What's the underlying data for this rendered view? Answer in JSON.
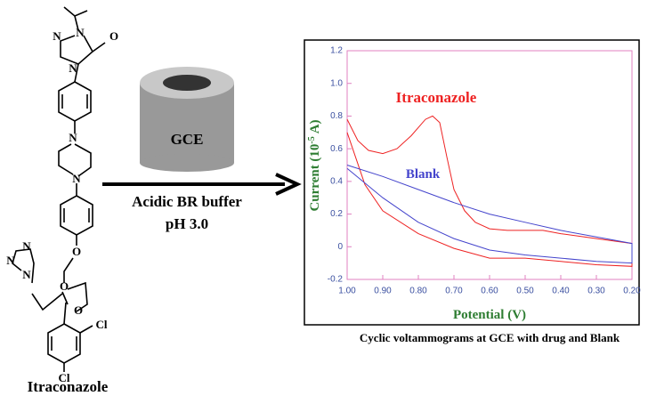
{
  "structure_labels": [
    "N",
    "N",
    "N",
    "O",
    "N",
    "N",
    "O",
    "N",
    "N",
    "N",
    "O",
    "O",
    "Cl",
    "Cl"
  ],
  "molecule_name": "Itraconazole",
  "electrode_label": "GCE",
  "arrow_labels": [
    "Acidic BR buffer",
    "pH 3.0"
  ],
  "caption": "Cyclic voltammograms at GCE with drug and Blank",
  "chart_data": {
    "type": "line",
    "xlabel": "Potential (V)",
    "ylabel": {
      "main": "Current (10",
      "sup": "-5",
      "end": " A)"
    },
    "xlim": [
      1.0,
      0.2
    ],
    "xticks": [
      {
        "value": 1.0,
        "label": "1.00"
      },
      {
        "value": 0.9,
        "label": "0.90"
      },
      {
        "value": 0.8,
        "label": "0.80"
      },
      {
        "value": 0.7,
        "label": "0.70"
      },
      {
        "value": 0.6,
        "label": "0.60"
      },
      {
        "value": 0.5,
        "label": "0.50"
      },
      {
        "value": 0.4,
        "label": "0.40"
      },
      {
        "value": 0.3,
        "label": "0.30"
      },
      {
        "value": 0.2,
        "label": "0.20"
      }
    ],
    "ylim": [
      -0.2,
      1.2
    ],
    "yticks": [
      -0.2,
      0,
      0.2,
      0.4,
      0.6,
      0.8,
      {
        "value": 1.0,
        "label": "1.0"
      },
      1.2
    ],
    "series": [
      {
        "name": "Itraconazole",
        "color": "#ee2222",
        "x": [
          1.0,
          0.97,
          0.94,
          0.9,
          0.86,
          0.82,
          0.78,
          0.76,
          0.74,
          0.72,
          0.7,
          0.67,
          0.64,
          0.6,
          0.55,
          0.5,
          0.45,
          0.4,
          0.3,
          0.2,
          0.2,
          0.3,
          0.4,
          0.5,
          0.6,
          0.7,
          0.8,
          0.9,
          0.95,
          1.0
        ],
        "values": [
          0.78,
          0.65,
          0.59,
          0.57,
          0.6,
          0.68,
          0.78,
          0.8,
          0.76,
          0.55,
          0.35,
          0.22,
          0.15,
          0.11,
          0.1,
          0.1,
          0.1,
          0.08,
          0.05,
          0.02,
          -0.12,
          -0.11,
          -0.09,
          -0.07,
          -0.07,
          -0.01,
          0.08,
          0.22,
          0.38,
          0.7
        ]
      },
      {
        "name": "Blank",
        "color": "#4444cc",
        "x": [
          1.0,
          0.9,
          0.8,
          0.7,
          0.6,
          0.5,
          0.4,
          0.3,
          0.2,
          0.2,
          0.3,
          0.4,
          0.5,
          0.6,
          0.7,
          0.8,
          0.9,
          1.0
        ],
        "values": [
          0.5,
          0.43,
          0.35,
          0.27,
          0.2,
          0.15,
          0.1,
          0.06,
          0.02,
          -0.1,
          -0.09,
          -0.07,
          -0.05,
          -0.02,
          0.05,
          0.15,
          0.3,
          0.48
        ]
      }
    ]
  }
}
